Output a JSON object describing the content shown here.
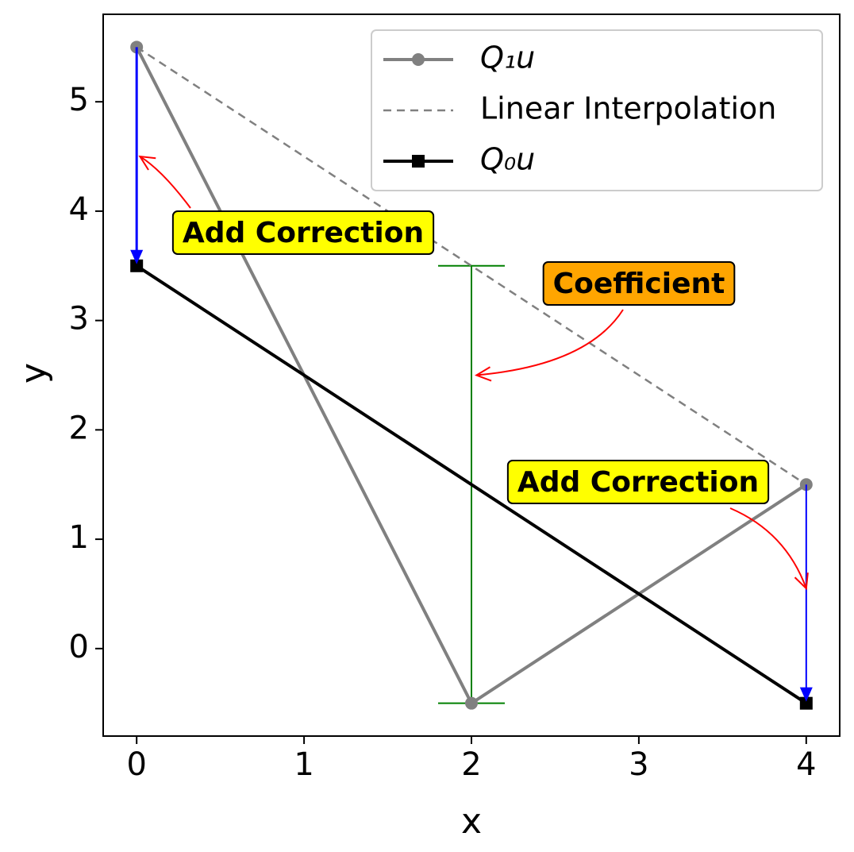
{
  "chart_data": {
    "type": "line",
    "x_label": "x",
    "y_label": "y",
    "xlim": [
      -0.2,
      4.2
    ],
    "ylim": [
      -0.8,
      5.8
    ],
    "xticks": [
      0,
      1,
      2,
      3,
      4
    ],
    "yticks": [
      0,
      1,
      2,
      3,
      4,
      5
    ],
    "legend": "upper right",
    "series": [
      {
        "name": "Q₁u",
        "color": "#808080",
        "marker": "circle",
        "linestyle": "solid",
        "x": [
          0,
          2,
          4
        ],
        "values": [
          5.5,
          -0.5,
          1.5
        ]
      },
      {
        "name": "Linear Interpolation",
        "color": "#808080",
        "marker": "none",
        "linestyle": "dashed",
        "x": [
          0,
          4
        ],
        "values": [
          5.5,
          1.5
        ]
      },
      {
        "name": "Q₀u",
        "color": "#000000",
        "marker": "square",
        "linestyle": "solid",
        "x": [
          0,
          4
        ],
        "values": [
          3.5,
          -0.5
        ]
      }
    ],
    "coefficient_bar": {
      "x": 2,
      "ymin": -0.5,
      "ymax": 3.5,
      "color": "#008000"
    },
    "annotations": [
      {
        "text": "Add Correction",
        "xy": [
          0.02,
          4.5
        ],
        "box_color": "#ffff00"
      },
      {
        "text": "Coefficient",
        "xy": [
          2.03,
          2.5
        ],
        "box_color": "#ffa500"
      },
      {
        "text": "Add Correction",
        "xy": [
          4,
          0.55
        ],
        "box_color": "#ffff00"
      }
    ]
  }
}
